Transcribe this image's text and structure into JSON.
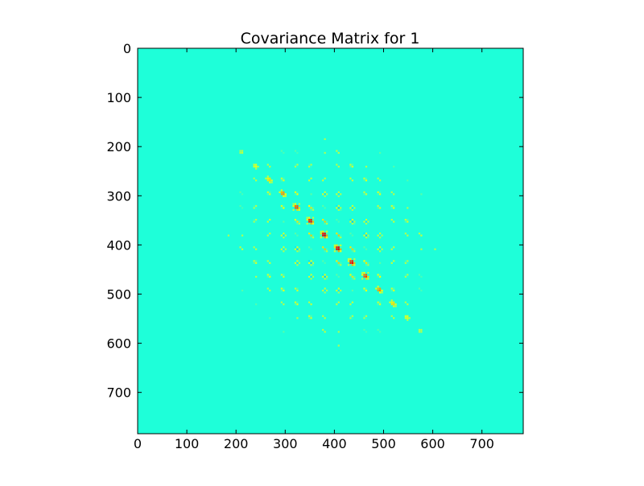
{
  "chart_data": {
    "type": "heatmap",
    "title": "Covariance Matrix for 1",
    "xlabel": "",
    "ylabel": "",
    "xlim": [
      0,
      784
    ],
    "ylim": [
      784,
      0
    ],
    "x_ticks": [
      0,
      100,
      200,
      300,
      400,
      500,
      600,
      700
    ],
    "y_ticks": [
      0,
      100,
      200,
      300,
      400,
      500,
      600,
      700
    ],
    "x_tick_labels": [
      "0",
      "100",
      "200",
      "300",
      "400",
      "500",
      "600",
      "700"
    ],
    "y_tick_labels": [
      "0",
      "100",
      "200",
      "300",
      "400",
      "500",
      "600",
      "700"
    ],
    "matrix_size": 784,
    "image_grid": 28,
    "colormap": "jet",
    "background_color": "#1effd9",
    "active_range": [
      155,
      630
    ],
    "grid": false
  }
}
